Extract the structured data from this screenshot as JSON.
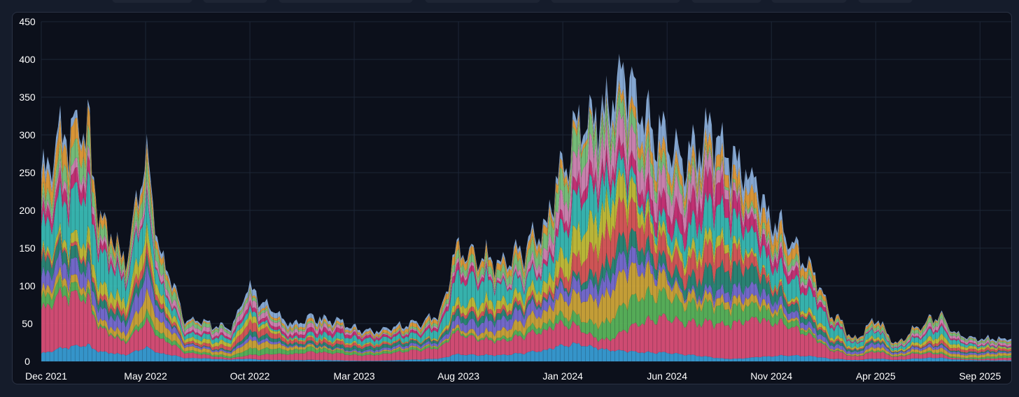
{
  "chart_data": {
    "type": "area",
    "stacked": true,
    "title": "",
    "xlabel": "",
    "ylabel": "",
    "grid": true,
    "legend": "none",
    "ylim": [
      0,
      450
    ],
    "y_ticks": [
      "0",
      "50",
      "100",
      "150",
      "200",
      "250",
      "300",
      "350",
      "400",
      "450"
    ],
    "x_ticks": [
      "Dec 2021",
      "May 2022",
      "Oct 2022",
      "Mar 2023",
      "Aug 2023",
      "Jan 2024",
      "Jun 2024",
      "Nov 2024",
      "Apr 2025",
      "Sep 2025"
    ],
    "x_range": [
      "2021-12",
      "2025-10"
    ],
    "total_approx": {
      "dates": [
        "2021-12",
        "2022-01",
        "2022-02",
        "2022-03",
        "2022-04",
        "2022-05",
        "2022-06",
        "2022-07",
        "2022-08",
        "2022-09",
        "2022-10",
        "2022-11",
        "2022-12",
        "2023-01",
        "2023-02",
        "2023-03",
        "2023-04",
        "2023-05",
        "2023-06",
        "2023-07",
        "2023-08",
        "2023-09",
        "2023-10",
        "2023-11",
        "2023-12",
        "2024-01",
        "2024-02",
        "2024-03",
        "2024-04",
        "2024-05",
        "2024-06",
        "2024-07",
        "2024-08",
        "2024-09",
        "2024-10",
        "2024-11",
        "2024-12",
        "2025-01",
        "2025-02",
        "2025-03",
        "2025-04",
        "2025-05",
        "2025-06",
        "2025-07",
        "2025-08",
        "2025-09",
        "2025-10"
      ],
      "values": [
        250,
        300,
        320,
        180,
        140,
        260,
        120,
        55,
        50,
        45,
        95,
        70,
        50,
        60,
        55,
        45,
        40,
        45,
        50,
        60,
        150,
        140,
        130,
        150,
        175,
        260,
        320,
        330,
        380,
        320,
        290,
        270,
        310,
        280,
        240,
        190,
        160,
        120,
        60,
        30,
        55,
        25,
        45,
        60,
        35,
        30,
        30
      ]
    },
    "series": [
      {
        "color": "#3aa0d8"
      },
      {
        "color": "#e0507a"
      },
      {
        "color": "#5cb85c"
      },
      {
        "color": "#d4a93a"
      },
      {
        "color": "#7b6fd6"
      },
      {
        "color": "#2e8b7a"
      },
      {
        "color": "#e05a5a"
      },
      {
        "color": "#c9c23a"
      },
      {
        "color": "#3bbfb8"
      },
      {
        "color": "#d0337a"
      },
      {
        "color": "#d88ab8"
      },
      {
        "color": "#7fc97f"
      },
      {
        "color": "#e8a03a"
      },
      {
        "color": "#8fb3e0"
      }
    ]
  }
}
